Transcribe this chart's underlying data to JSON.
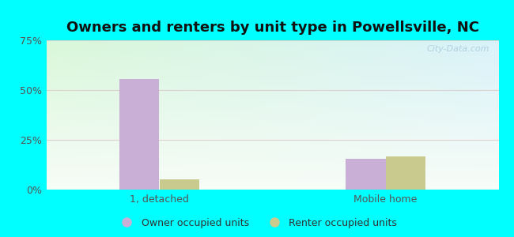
{
  "title": "Owners and renters by unit type in Powellsville, NC",
  "categories": [
    "1, detached",
    "Mobile home"
  ],
  "owner_values": [
    55.5,
    15.5
  ],
  "renter_values": [
    5.0,
    16.5
  ],
  "owner_color": "#c9aed6",
  "renter_color": "#c8ca8e",
  "ylim": [
    0,
    75
  ],
  "yticks": [
    0,
    25,
    50,
    75
  ],
  "yticklabels": [
    "0%",
    "25%",
    "50%",
    "75%"
  ],
  "bg_color_top": "#d4edda",
  "bg_color_bottom": "#edfaed",
  "bg_color_right": "#d0eaf5",
  "outer_bg": "#00ffff",
  "watermark": "City-Data.com",
  "legend_labels": [
    "Owner occupied units",
    "Renter occupied units"
  ],
  "bar_width": 0.35,
  "group_positions": [
    1.0,
    3.0
  ],
  "title_fontsize": 13,
  "tick_color": "#555555",
  "grid_color": "#e0d0d0",
  "watermark_color": "#aaccdd"
}
